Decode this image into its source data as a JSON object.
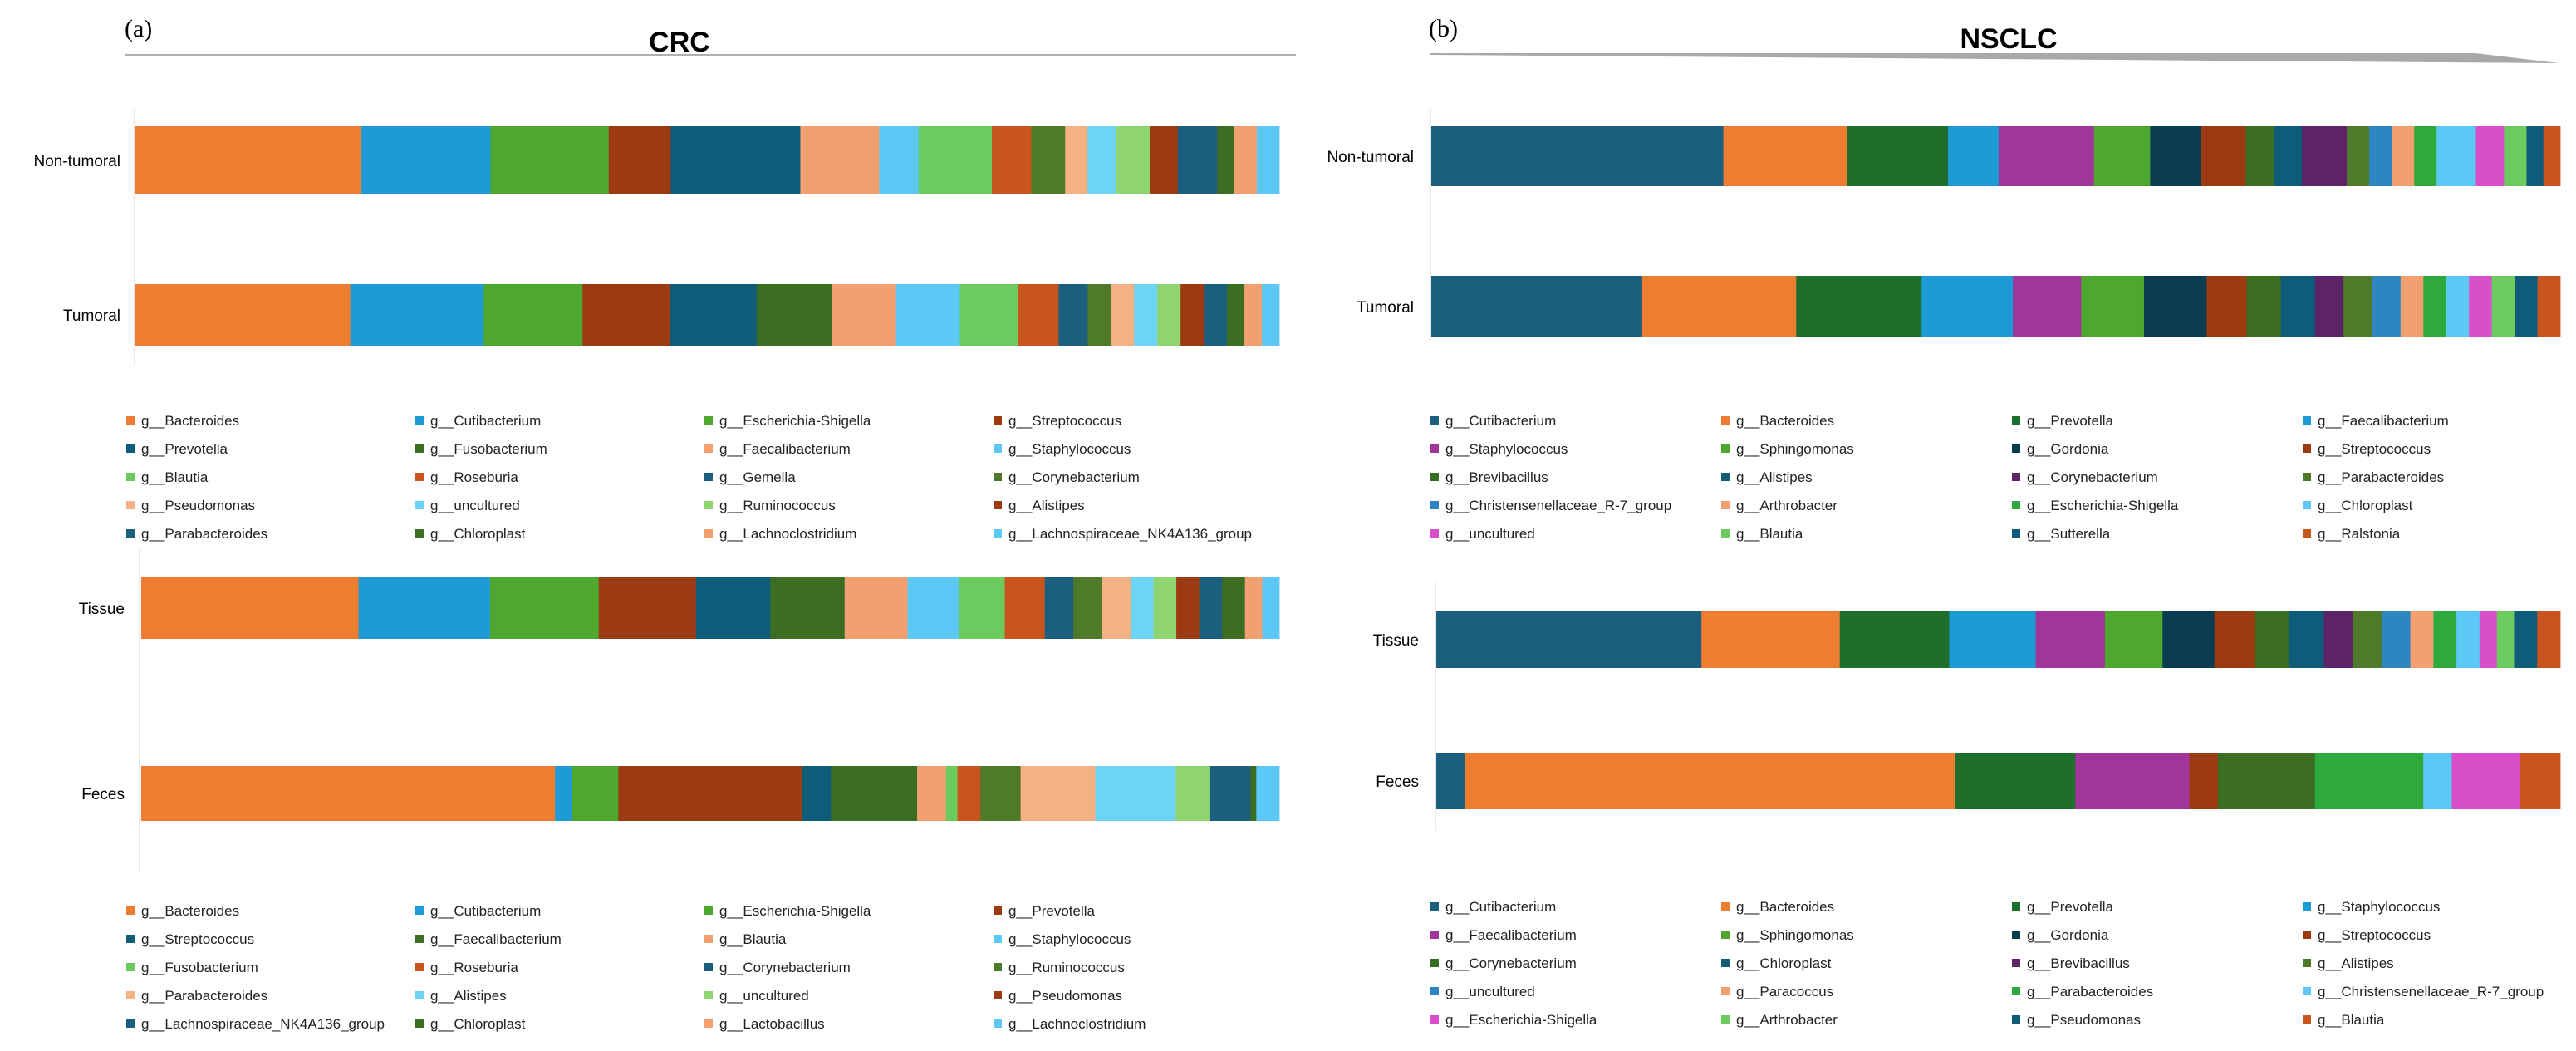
{
  "colors": {
    "orange": "#ED7D31",
    "sky": "#1E9BD7",
    "green": "#4EA72E",
    "brown": "#9C3B11",
    "teal": "#0E5B7A",
    "salmon": "#F2A070",
    "lightblue": "#5BC8F5",
    "lightgreen": "#6CCB5F",
    "darkgreen": "#3B6E22",
    "navy": "#1B5E7E",
    "burnt": "#C8551E",
    "darkteal": "#0B3D52",
    "magenta": "#A0369A",
    "purple": "#5C2366",
    "pink": "#D94FC9",
    "forest": "#1E6E2C",
    "midgreen": "#2EAA3C",
    "steel": "#2E86C1",
    "olive": "#4E7A2A",
    "limegreen": "#8ED46F",
    "peach": "#F4B183",
    "cyan": "#6DD4F5"
  },
  "chart_data": [
    {
      "id": "a-top",
      "panel_label": "(a)",
      "title": "CRC",
      "type": "bar",
      "orientation": "horizontal",
      "stacked": true,
      "normalized": true,
      "categories": [
        "Non-tumoral",
        "Tumoral"
      ],
      "series": [
        {
          "name": "g__Bacteroides",
          "color": "orange",
          "values": [
            20,
            18.5
          ]
        },
        {
          "name": "g__Cutibacterium",
          "color": "sky",
          "values": [
            11.5,
            11.5
          ]
        },
        {
          "name": "g__Escherichia-Shigella",
          "color": "green",
          "values": [
            10.5,
            8.5
          ]
        },
        {
          "name": "g__Streptococcus",
          "color": "brown",
          "values": [
            5.5,
            7.5
          ]
        },
        {
          "name": "g__Prevotella",
          "color": "teal",
          "values": [
            11.5,
            7.5
          ]
        },
        {
          "name": "g__Fusobacterium",
          "color": "darkgreen",
          "values": [
            0,
            6.5
          ]
        },
        {
          "name": "g__Faecalibacterium",
          "color": "salmon",
          "values": [
            7,
            5.5
          ]
        },
        {
          "name": "g__Staphylococcus",
          "color": "lightblue",
          "values": [
            3.5,
            5.5
          ]
        },
        {
          "name": "g__Blautia",
          "color": "lightgreen",
          "values": [
            6.5,
            5
          ]
        },
        {
          "name": "g__Roseburia",
          "color": "burnt",
          "values": [
            3.5,
            3.5
          ]
        },
        {
          "name": "g__Gemella",
          "color": "navy",
          "values": [
            0,
            2.5
          ]
        },
        {
          "name": "g__Corynebacterium",
          "color": "olive",
          "values": [
            3,
            2
          ]
        },
        {
          "name": "g__Pseudomonas",
          "color": "peach",
          "values": [
            2,
            2
          ]
        },
        {
          "name": "g__uncultured",
          "color": "cyan",
          "values": [
            2.5,
            2
          ]
        },
        {
          "name": "g__Ruminococcus",
          "color": "limegreen",
          "values": [
            3,
            2
          ]
        },
        {
          "name": "g__Alistipes",
          "color": "brown",
          "values": [
            2.5,
            2
          ]
        },
        {
          "name": "g__Parabacteroides",
          "color": "navy",
          "values": [
            3.5,
            2
          ]
        },
        {
          "name": "g__Chloroplast",
          "color": "darkgreen",
          "values": [
            1.5,
            1.5
          ]
        },
        {
          "name": "g__Lachnoclostridium",
          "color": "salmon",
          "values": [
            2,
            1.5
          ]
        },
        {
          "name": "g__Lachnospiraceae_NK4A136_group",
          "color": "lightblue",
          "values": [
            2,
            1.5
          ]
        }
      ],
      "legend": [
        "g__Bacteroides",
        "g__Cutibacterium",
        "g__Escherichia-Shigella",
        "g__Streptococcus",
        "g__Prevotella",
        "g__Fusobacterium",
        "g__Faecalibacterium",
        "g__Staphylococcus",
        "g__Blautia",
        "g__Roseburia",
        "g__Gemella",
        "g__Corynebacterium",
        "g__Pseudomonas",
        "g__uncultured",
        "g__Ruminococcus",
        "g__Alistipes",
        "g__Parabacteroides",
        "g__Chloroplast",
        "g__Lachnoclostridium",
        "g__Lachnospiraceae_NK4A136_group"
      ],
      "legend_colors": [
        "orange",
        "sky",
        "green",
        "brown",
        "teal",
        "darkgreen",
        "salmon",
        "lightblue",
        "lightgreen",
        "burnt",
        "navy",
        "olive",
        "peach",
        "cyan",
        "limegreen",
        "brown",
        "navy",
        "darkgreen",
        "salmon",
        "lightblue"
      ]
    },
    {
      "id": "a-bottom",
      "type": "bar",
      "orientation": "horizontal",
      "stacked": true,
      "normalized": true,
      "categories": [
        "Tissue",
        "Feces"
      ],
      "series": [
        {
          "name": "g__Bacteroides",
          "color": "orange",
          "values": [
            19,
            36
          ]
        },
        {
          "name": "g__Cutibacterium",
          "color": "sky",
          "values": [
            11.5,
            1.5
          ]
        },
        {
          "name": "g__Escherichia-Shigella",
          "color": "green",
          "values": [
            9.5,
            4
          ]
        },
        {
          "name": "g__Prevotella",
          "color": "brown",
          "values": [
            8.5,
            16
          ]
        },
        {
          "name": "g__Streptococcus",
          "color": "teal",
          "values": [
            6.5,
            2.5
          ]
        },
        {
          "name": "g__Faecalibacterium",
          "color": "darkgreen",
          "values": [
            6.5,
            7.5
          ]
        },
        {
          "name": "g__Blautia",
          "color": "salmon",
          "values": [
            5.5,
            2.5
          ]
        },
        {
          "name": "g__Staphylococcus",
          "color": "lightblue",
          "values": [
            4.5,
            0
          ]
        },
        {
          "name": "g__Fusobacterium",
          "color": "lightgreen",
          "values": [
            4,
            1
          ]
        },
        {
          "name": "g__Roseburia",
          "color": "burnt",
          "values": [
            3.5,
            2
          ]
        },
        {
          "name": "g__Corynebacterium",
          "color": "navy",
          "values": [
            2.5,
            0
          ]
        },
        {
          "name": "g__Ruminococcus",
          "color": "olive",
          "values": [
            2.5,
            3.5
          ]
        },
        {
          "name": "g__Parabacteroides",
          "color": "peach",
          "values": [
            2.5,
            6.5
          ]
        },
        {
          "name": "g__Alistipes",
          "color": "cyan",
          "values": [
            2,
            7
          ]
        },
        {
          "name": "g__uncultured",
          "color": "limegreen",
          "values": [
            2,
            3
          ]
        },
        {
          "name": "g__Pseudomonas",
          "color": "brown",
          "values": [
            2,
            0
          ]
        },
        {
          "name": "g__Lachnospiraceae_NK4A136_group",
          "color": "navy",
          "values": [
            2,
            3.5
          ]
        },
        {
          "name": "g__Chloroplast",
          "color": "darkgreen",
          "values": [
            2,
            0.5
          ]
        },
        {
          "name": "g__Lactobacillus",
          "color": "salmon",
          "values": [
            1.5,
            0
          ]
        },
        {
          "name": "g__Lachnoclostridium",
          "color": "lightblue",
          "values": [
            1.5,
            2
          ]
        }
      ],
      "legend": [
        "g__Bacteroides",
        "g__Cutibacterium",
        "g__Escherichia-Shigella",
        "g__Prevotella",
        "g__Streptococcus",
        "g__Faecalibacterium",
        "g__Blautia",
        "g__Staphylococcus",
        "g__Fusobacterium",
        "g__Roseburia",
        "g__Corynebacterium",
        "g__Ruminococcus",
        "g__Parabacteroides",
        "g__Alistipes",
        "g__uncultured",
        "g__Pseudomonas",
        "g__Lachnospiraceae_NK4A136_group",
        "g__Chloroplast",
        "g__Lactobacillus",
        "g__Lachnoclostridium"
      ],
      "legend_colors": [
        "orange",
        "sky",
        "green",
        "brown",
        "teal",
        "darkgreen",
        "salmon",
        "lightblue",
        "lightgreen",
        "burnt",
        "navy",
        "olive",
        "peach",
        "cyan",
        "limegreen",
        "brown",
        "navy",
        "darkgreen",
        "salmon",
        "lightblue"
      ]
    },
    {
      "id": "b-top",
      "panel_label": "(b)",
      "title": "NSCLC",
      "type": "bar",
      "orientation": "horizontal",
      "stacked": true,
      "normalized": true,
      "categories": [
        "Non-tumoral",
        "Tumoral"
      ],
      "series": [
        {
          "name": "g__Cutibacterium",
          "color": "navy",
          "values": [
            26,
            18.5
          ]
        },
        {
          "name": "g__Bacteroides",
          "color": "orange",
          "values": [
            11,
            13.5
          ]
        },
        {
          "name": "g__Prevotella",
          "color": "forest",
          "values": [
            9,
            11
          ]
        },
        {
          "name": "g__Faecalibacterium",
          "color": "sky",
          "values": [
            4.5,
            8
          ]
        },
        {
          "name": "g__Staphylococcus",
          "color": "magenta",
          "values": [
            8.5,
            6
          ]
        },
        {
          "name": "g__Sphingomonas",
          "color": "green",
          "values": [
            5,
            5.5
          ]
        },
        {
          "name": "g__Gordonia",
          "color": "darkteal",
          "values": [
            4.5,
            5.5
          ]
        },
        {
          "name": "g__Streptococcus",
          "color": "brown",
          "values": [
            4,
            3.5
          ]
        },
        {
          "name": "g__Brevibacillus",
          "color": "darkgreen",
          "values": [
            2.5,
            3
          ]
        },
        {
          "name": "g__Alistipes",
          "color": "teal",
          "values": [
            2.5,
            3
          ]
        },
        {
          "name": "g__Corynebacterium",
          "color": "purple",
          "values": [
            4,
            2.5
          ]
        },
        {
          "name": "g__Parabacteroides",
          "color": "olive",
          "values": [
            2,
            2.5
          ]
        },
        {
          "name": "g__Christensenellaceae_R-7_group",
          "color": "steel",
          "values": [
            2,
            2.5
          ]
        },
        {
          "name": "g__Arthrobacter",
          "color": "salmon",
          "values": [
            2,
            2
          ]
        },
        {
          "name": "g__Escherichia-Shigella",
          "color": "midgreen",
          "values": [
            2,
            2
          ]
        },
        {
          "name": "g__Chloroplast",
          "color": "lightblue",
          "values": [
            3.5,
            2
          ]
        },
        {
          "name": "g__uncultured",
          "color": "pink",
          "values": [
            2.5,
            2
          ]
        },
        {
          "name": "g__Blautia",
          "color": "lightgreen",
          "values": [
            2,
            2
          ]
        },
        {
          "name": "g__Sutterella",
          "color": "teal",
          "values": [
            1.5,
            2
          ]
        },
        {
          "name": "g__Ralstonia",
          "color": "burnt",
          "values": [
            1.5,
            2
          ]
        }
      ],
      "legend": [
        "g__Cutibacterium",
        "g__Bacteroides",
        "g__Prevotella",
        "g__Faecalibacterium",
        "g__Staphylococcus",
        "g__Sphingomonas",
        "g__Gordonia",
        "g__Streptococcus",
        "g__Brevibacillus",
        "g__Alistipes",
        "g__Corynebacterium",
        "g__Parabacteroides",
        "g__Christensenellaceae_R-7_group",
        "g__Arthrobacter",
        "g__Escherichia-Shigella",
        "g__Chloroplast",
        "g__uncultured",
        "g__Blautia",
        "g__Sutterella",
        "g__Ralstonia"
      ],
      "legend_colors": [
        "navy",
        "orange",
        "forest",
        "sky",
        "magenta",
        "green",
        "darkteal",
        "brown",
        "darkgreen",
        "teal",
        "purple",
        "olive",
        "steel",
        "salmon",
        "midgreen",
        "lightblue",
        "pink",
        "lightgreen",
        "teal",
        "burnt"
      ]
    },
    {
      "id": "b-bottom",
      "type": "bar",
      "orientation": "horizontal",
      "stacked": true,
      "normalized": true,
      "categories": [
        "Tissue",
        "Feces"
      ],
      "series": [
        {
          "name": "g__Cutibacterium",
          "color": "navy",
          "values": [
            23,
            2.5
          ]
        },
        {
          "name": "g__Bacteroides",
          "color": "orange",
          "values": [
            12,
            43
          ]
        },
        {
          "name": "g__Prevotella",
          "color": "forest",
          "values": [
            9.5,
            10.5
          ]
        },
        {
          "name": "g__Staphylococcus",
          "color": "sky",
          "values": [
            7.5,
            0
          ]
        },
        {
          "name": "g__Faecalibacterium",
          "color": "magenta",
          "values": [
            6,
            10
          ]
        },
        {
          "name": "g__Sphingomonas",
          "color": "green",
          "values": [
            5,
            0
          ]
        },
        {
          "name": "g__Gordonia",
          "color": "darkteal",
          "values": [
            4.5,
            0
          ]
        },
        {
          "name": "g__Streptococcus",
          "color": "brown",
          "values": [
            3.5,
            2.5
          ]
        },
        {
          "name": "g__Corynebacterium",
          "color": "darkgreen",
          "values": [
            3,
            8.5
          ]
        },
        {
          "name": "g__Chloroplast",
          "color": "teal",
          "values": [
            3,
            0
          ]
        },
        {
          "name": "g__Brevibacillus",
          "color": "purple",
          "values": [
            2.5,
            0
          ]
        },
        {
          "name": "g__Alistipes",
          "color": "olive",
          "values": [
            2.5,
            0
          ]
        },
        {
          "name": "g__uncultured",
          "color": "steel",
          "values": [
            2.5,
            0
          ]
        },
        {
          "name": "g__Paracoccus",
          "color": "salmon",
          "values": [
            2,
            0
          ]
        },
        {
          "name": "g__Parabacteroides",
          "color": "midgreen",
          "values": [
            2,
            9.5
          ]
        },
        {
          "name": "g__Christensenellaceae_R-7_group",
          "color": "lightblue",
          "values": [
            2,
            2.5
          ]
        },
        {
          "name": "g__Escherichia-Shigella",
          "color": "pink",
          "values": [
            1.5,
            6
          ]
        },
        {
          "name": "g__Arthrobacter",
          "color": "lightgreen",
          "values": [
            1.5,
            0
          ]
        },
        {
          "name": "g__Pseudomonas",
          "color": "teal",
          "values": [
            2,
            0
          ]
        },
        {
          "name": "g__Blautia",
          "color": "burnt",
          "values": [
            2,
            3.5
          ]
        }
      ],
      "legend": [
        "g__Cutibacterium",
        "g__Bacteroides",
        "g__Prevotella",
        "g__Staphylococcus",
        "g__Faecalibacterium",
        "g__Sphingomonas",
        "g__Gordonia",
        "g__Streptococcus",
        "g__Corynebacterium",
        "g__Chloroplast",
        "g__Brevibacillus",
        "g__Alistipes",
        "g__uncultured",
        "g__Paracoccus",
        "g__Parabacteroides",
        "g__Christensenellaceae_R-7_group",
        "g__Escherichia-Shigella",
        "g__Arthrobacter",
        "g__Pseudomonas",
        "g__Blautia"
      ],
      "legend_colors": [
        "navy",
        "orange",
        "forest",
        "sky",
        "magenta",
        "green",
        "darkteal",
        "brown",
        "darkgreen",
        "teal",
        "purple",
        "olive",
        "steel",
        "salmon",
        "midgreen",
        "lightblue",
        "pink",
        "lightgreen",
        "teal",
        "burnt"
      ]
    }
  ]
}
